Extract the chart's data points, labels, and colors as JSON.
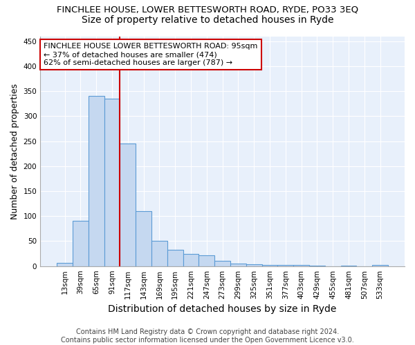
{
  "title": "FINCHLEE HOUSE, LOWER BETTESWORTH ROAD, RYDE, PO33 3EQ",
  "subtitle": "Size of property relative to detached houses in Ryde",
  "xlabel": "Distribution of detached houses by size in Ryde",
  "ylabel": "Number of detached properties",
  "footnote": "Contains HM Land Registry data © Crown copyright and database right 2024.\nContains public sector information licensed under the Open Government Licence v3.0.",
  "categories": [
    "13sqm",
    "39sqm",
    "65sqm",
    "91sqm",
    "117sqm",
    "143sqm",
    "169sqm",
    "195sqm",
    "221sqm",
    "247sqm",
    "273sqm",
    "299sqm",
    "325sqm",
    "351sqm",
    "377sqm",
    "403sqm",
    "429sqm",
    "455sqm",
    "481sqm",
    "507sqm",
    "533sqm"
  ],
  "values": [
    6,
    90,
    340,
    335,
    245,
    110,
    50,
    33,
    25,
    22,
    10,
    5,
    4,
    3,
    2,
    3,
    1,
    0,
    1,
    0,
    3
  ],
  "bar_color": "#c5d8f0",
  "bar_edge_color": "#5b9bd5",
  "bar_edge_width": 0.8,
  "vline_x": 3.5,
  "vline_color": "#cc0000",
  "annotation_text": "FINCHLEE HOUSE LOWER BETTESWORTH ROAD: 95sqm\n← 37% of detached houses are smaller (474)\n62% of semi-detached houses are larger (787) →",
  "annotation_box_color": "#ffffff",
  "annotation_box_edge_color": "#cc0000",
  "ylim": [
    0,
    460
  ],
  "yticks": [
    0,
    50,
    100,
    150,
    200,
    250,
    300,
    350,
    400,
    450
  ],
  "figure_background_color": "#ffffff",
  "plot_background_color": "#e8f0fb",
  "grid_color": "#ffffff",
  "title_fontsize": 9.5,
  "subtitle_fontsize": 10,
  "xlabel_fontsize": 10,
  "ylabel_fontsize": 9,
  "tick_fontsize": 7.5,
  "annotation_fontsize": 8,
  "footnote_fontsize": 7
}
